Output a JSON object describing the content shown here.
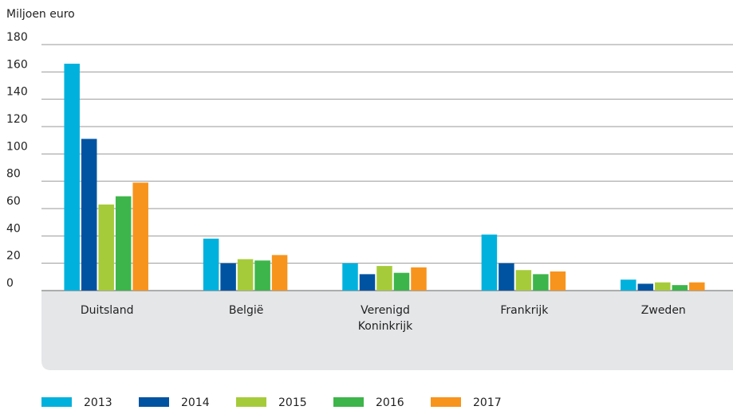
{
  "chart_data": {
    "type": "bar",
    "y_label": "Miljoen euro",
    "categories": [
      "Duitsland",
      "België",
      "Verenigd Koninkrijk",
      "Frankrijk",
      "Zweden"
    ],
    "series": [
      {
        "name": "2013",
        "color": "#00b1dd",
        "values": [
          166,
          38,
          20,
          41,
          8
        ]
      },
      {
        "name": "2014",
        "color": "#0053a1",
        "values": [
          111,
          20,
          12,
          20,
          5
        ]
      },
      {
        "name": "2015",
        "color": "#a6cb3a",
        "values": [
          63,
          23,
          18,
          15,
          6
        ]
      },
      {
        "name": "2016",
        "color": "#3db54a",
        "values": [
          69,
          22,
          13,
          12,
          4
        ]
      },
      {
        "name": "2017",
        "color": "#f7941d",
        "values": [
          79,
          26,
          17,
          14,
          6
        ]
      }
    ],
    "ylim": [
      0,
      180
    ],
    "yticks": [
      0,
      20,
      40,
      60,
      80,
      100,
      120,
      140,
      160,
      180
    ],
    "grid": true,
    "legend": "bottom"
  }
}
